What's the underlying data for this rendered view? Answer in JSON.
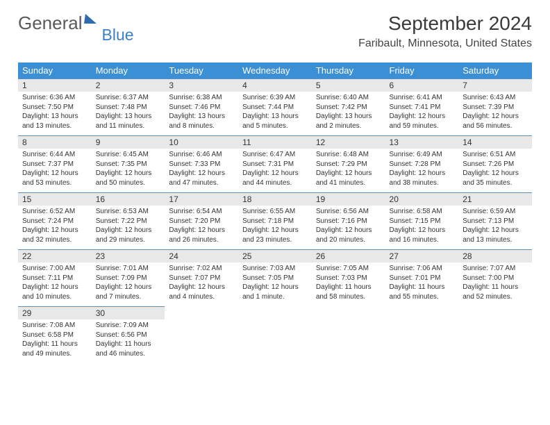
{
  "logo": {
    "text1": "General",
    "text2": "Blue"
  },
  "title": "September 2024",
  "location": "Faribault, Minnesota, United States",
  "colors": {
    "header_bg": "#3b8fd4",
    "header_text": "#ffffff",
    "daynum_bg": "#e8e8e8",
    "row_border": "#5a8fb8",
    "logo_gray": "#5a5a5a",
    "logo_blue": "#3b7fc4"
  },
  "typography": {
    "title_fontsize": 28,
    "location_fontsize": 16,
    "dayheader_fontsize": 13,
    "daynum_fontsize": 12,
    "cell_fontsize": 10
  },
  "day_headers": [
    "Sunday",
    "Monday",
    "Tuesday",
    "Wednesday",
    "Thursday",
    "Friday",
    "Saturday"
  ],
  "weeks": [
    [
      {
        "num": "1",
        "sunrise": "6:36 AM",
        "sunset": "7:50 PM",
        "daylight": "13 hours and 13 minutes."
      },
      {
        "num": "2",
        "sunrise": "6:37 AM",
        "sunset": "7:48 PM",
        "daylight": "13 hours and 11 minutes."
      },
      {
        "num": "3",
        "sunrise": "6:38 AM",
        "sunset": "7:46 PM",
        "daylight": "13 hours and 8 minutes."
      },
      {
        "num": "4",
        "sunrise": "6:39 AM",
        "sunset": "7:44 PM",
        "daylight": "13 hours and 5 minutes."
      },
      {
        "num": "5",
        "sunrise": "6:40 AM",
        "sunset": "7:42 PM",
        "daylight": "13 hours and 2 minutes."
      },
      {
        "num": "6",
        "sunrise": "6:41 AM",
        "sunset": "7:41 PM",
        "daylight": "12 hours and 59 minutes."
      },
      {
        "num": "7",
        "sunrise": "6:43 AM",
        "sunset": "7:39 PM",
        "daylight": "12 hours and 56 minutes."
      }
    ],
    [
      {
        "num": "8",
        "sunrise": "6:44 AM",
        "sunset": "7:37 PM",
        "daylight": "12 hours and 53 minutes."
      },
      {
        "num": "9",
        "sunrise": "6:45 AM",
        "sunset": "7:35 PM",
        "daylight": "12 hours and 50 minutes."
      },
      {
        "num": "10",
        "sunrise": "6:46 AM",
        "sunset": "7:33 PM",
        "daylight": "12 hours and 47 minutes."
      },
      {
        "num": "11",
        "sunrise": "6:47 AM",
        "sunset": "7:31 PM",
        "daylight": "12 hours and 44 minutes."
      },
      {
        "num": "12",
        "sunrise": "6:48 AM",
        "sunset": "7:29 PM",
        "daylight": "12 hours and 41 minutes."
      },
      {
        "num": "13",
        "sunrise": "6:49 AM",
        "sunset": "7:28 PM",
        "daylight": "12 hours and 38 minutes."
      },
      {
        "num": "14",
        "sunrise": "6:51 AM",
        "sunset": "7:26 PM",
        "daylight": "12 hours and 35 minutes."
      }
    ],
    [
      {
        "num": "15",
        "sunrise": "6:52 AM",
        "sunset": "7:24 PM",
        "daylight": "12 hours and 32 minutes."
      },
      {
        "num": "16",
        "sunrise": "6:53 AM",
        "sunset": "7:22 PM",
        "daylight": "12 hours and 29 minutes."
      },
      {
        "num": "17",
        "sunrise": "6:54 AM",
        "sunset": "7:20 PM",
        "daylight": "12 hours and 26 minutes."
      },
      {
        "num": "18",
        "sunrise": "6:55 AM",
        "sunset": "7:18 PM",
        "daylight": "12 hours and 23 minutes."
      },
      {
        "num": "19",
        "sunrise": "6:56 AM",
        "sunset": "7:16 PM",
        "daylight": "12 hours and 20 minutes."
      },
      {
        "num": "20",
        "sunrise": "6:58 AM",
        "sunset": "7:15 PM",
        "daylight": "12 hours and 16 minutes."
      },
      {
        "num": "21",
        "sunrise": "6:59 AM",
        "sunset": "7:13 PM",
        "daylight": "12 hours and 13 minutes."
      }
    ],
    [
      {
        "num": "22",
        "sunrise": "7:00 AM",
        "sunset": "7:11 PM",
        "daylight": "12 hours and 10 minutes."
      },
      {
        "num": "23",
        "sunrise": "7:01 AM",
        "sunset": "7:09 PM",
        "daylight": "12 hours and 7 minutes."
      },
      {
        "num": "24",
        "sunrise": "7:02 AM",
        "sunset": "7:07 PM",
        "daylight": "12 hours and 4 minutes."
      },
      {
        "num": "25",
        "sunrise": "7:03 AM",
        "sunset": "7:05 PM",
        "daylight": "12 hours and 1 minute."
      },
      {
        "num": "26",
        "sunrise": "7:05 AM",
        "sunset": "7:03 PM",
        "daylight": "11 hours and 58 minutes."
      },
      {
        "num": "27",
        "sunrise": "7:06 AM",
        "sunset": "7:01 PM",
        "daylight": "11 hours and 55 minutes."
      },
      {
        "num": "28",
        "sunrise": "7:07 AM",
        "sunset": "7:00 PM",
        "daylight": "11 hours and 52 minutes."
      }
    ],
    [
      {
        "num": "29",
        "sunrise": "7:08 AM",
        "sunset": "6:58 PM",
        "daylight": "11 hours and 49 minutes."
      },
      {
        "num": "30",
        "sunrise": "7:09 AM",
        "sunset": "6:56 PM",
        "daylight": "11 hours and 46 minutes."
      },
      null,
      null,
      null,
      null,
      null
    ]
  ],
  "labels": {
    "sunrise": "Sunrise:",
    "sunset": "Sunset:",
    "daylight": "Daylight:"
  }
}
